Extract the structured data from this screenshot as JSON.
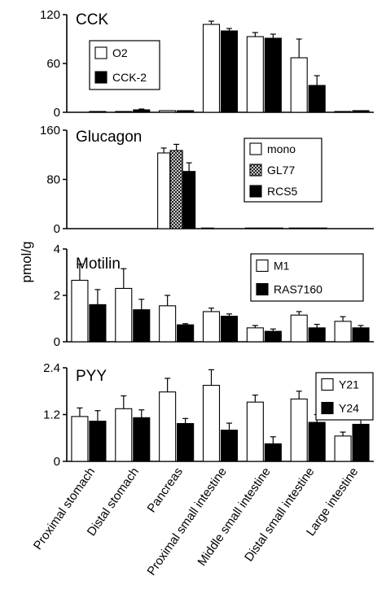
{
  "ylabel": "pmol/g",
  "categories": [
    "Proximal stomach",
    "Distal stomach",
    "Pancreas",
    "Proximal small intestine",
    "Middle small intestine",
    "Distal small intestine",
    "Large intestine"
  ],
  "colors": {
    "white": "#ffffff",
    "black": "#000000",
    "hatch": "#9a9a9a"
  },
  "chart_data": [
    {
      "type": "bar",
      "title": "CCK",
      "categories": [
        "Proximal stomach",
        "Distal stomach",
        "Pancreas",
        "Proximal small intestine",
        "Middle small intestine",
        "Distal small intestine",
        "Large intestine"
      ],
      "ylim": [
        0,
        120
      ],
      "yticks": [
        "0",
        "60",
        "120"
      ],
      "legend_placement": "left",
      "series": [
        {
          "name": "O2",
          "fill": "white",
          "values": [
            0,
            1,
            2,
            108,
            93,
            67,
            1
          ],
          "errors": [
            0,
            0,
            0,
            4,
            5,
            23,
            0
          ]
        },
        {
          "name": "CCK-2",
          "fill": "black",
          "values": [
            1,
            3,
            2,
            100,
            91,
            33,
            2
          ],
          "errors": [
            0,
            1,
            0,
            3,
            5,
            12,
            0
          ]
        }
      ]
    },
    {
      "type": "bar",
      "title": "Glucagon",
      "categories": [
        "Proximal stomach",
        "Distal stomach",
        "Pancreas",
        "Proximal small intestine",
        "Middle small intestine",
        "Distal small intestine",
        "Large intestine"
      ],
      "ylim": [
        0,
        160
      ],
      "yticks": [
        "0",
        "80",
        "160"
      ],
      "legend_placement": "right",
      "series": [
        {
          "name": "mono",
          "fill": "white",
          "values": [
            0,
            0,
            123,
            1,
            1,
            1,
            0
          ],
          "errors": [
            0,
            0,
            8,
            0,
            0,
            0,
            0
          ]
        },
        {
          "name": "GL77",
          "fill": "hatch",
          "values": [
            0,
            0,
            127,
            0,
            1,
            1,
            0
          ],
          "errors": [
            0,
            0,
            10,
            0,
            0,
            0,
            0
          ]
        },
        {
          "name": "RCS5",
          "fill": "black",
          "values": [
            0,
            0,
            93,
            0,
            1,
            1,
            0
          ],
          "errors": [
            0,
            0,
            14,
            0,
            0,
            0,
            0
          ]
        }
      ]
    },
    {
      "type": "bar",
      "title": "Motilin",
      "categories": [
        "Proximal stomach",
        "Distal stomach",
        "Pancreas",
        "Proximal small intestine",
        "Middle small intestine",
        "Distal small intestine",
        "Large intestine"
      ],
      "ylim": [
        0,
        4
      ],
      "yticks": [
        "0",
        "2",
        "4"
      ],
      "legend_placement": "right",
      "series": [
        {
          "name": "M1",
          "fill": "white",
          "values": [
            2.65,
            2.3,
            1.55,
            1.3,
            0.6,
            1.15,
            0.88
          ],
          "errors": [
            0.7,
            0.85,
            0.45,
            0.15,
            0.1,
            0.15,
            0.2
          ]
        },
        {
          "name": "RAS7160",
          "fill": "black",
          "values": [
            1.6,
            1.38,
            0.73,
            1.1,
            0.45,
            0.6,
            0.6
          ],
          "errors": [
            0.65,
            0.45,
            0.05,
            0.1,
            0.1,
            0.15,
            0.1
          ]
        }
      ]
    },
    {
      "type": "bar",
      "title": "PYY",
      "categories": [
        "Proximal stomach",
        "Distal stomach",
        "Pancreas",
        "Proximal small intestine",
        "Middle small intestine",
        "Distal small intestine",
        "Large intestine"
      ],
      "ylim": [
        0,
        2.4
      ],
      "yticks": [
        "0",
        "1.2",
        "2.4"
      ],
      "legend_placement": "top-right",
      "series": [
        {
          "name": "Y21",
          "fill": "white",
          "values": [
            1.15,
            1.35,
            1.78,
            1.95,
            1.52,
            1.6,
            0.65
          ],
          "errors": [
            0.22,
            0.33,
            0.35,
            0.4,
            0.18,
            0.2,
            0.1
          ]
        },
        {
          "name": "Y24",
          "fill": "black",
          "values": [
            1.03,
            1.12,
            0.97,
            0.8,
            0.45,
            1.0,
            0.95
          ],
          "errors": [
            0.27,
            0.2,
            0.13,
            0.18,
            0.18,
            0.2,
            0.28
          ]
        }
      ]
    }
  ]
}
